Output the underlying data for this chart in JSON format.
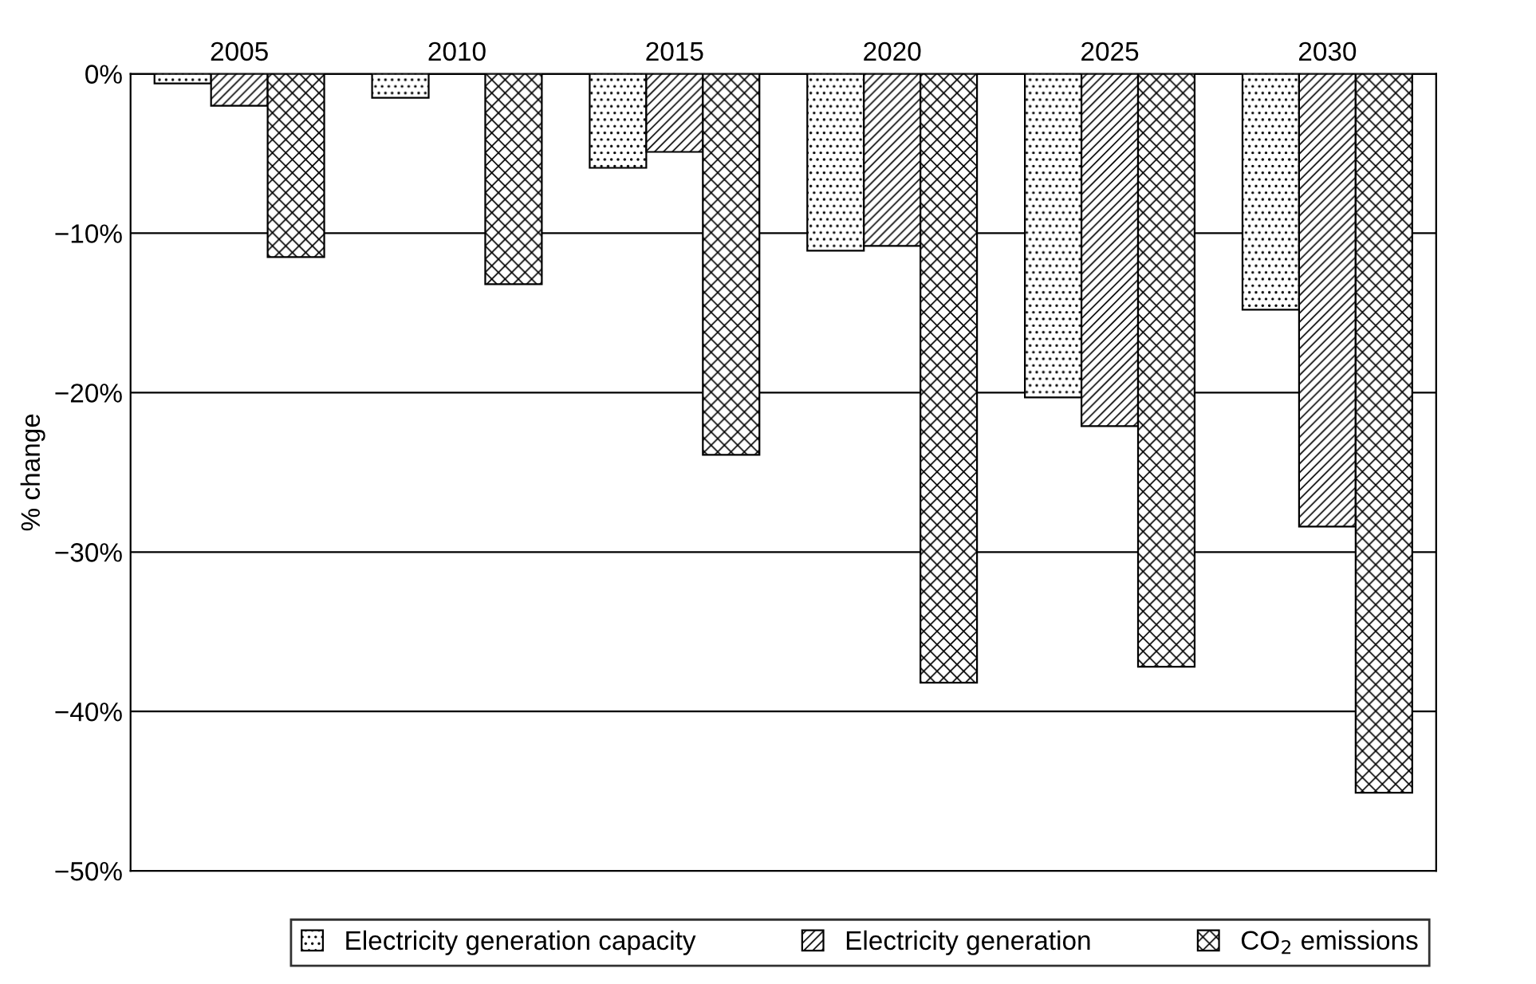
{
  "chart_data": {
    "type": "bar",
    "categories": [
      "2005",
      "2010",
      "2015",
      "2020",
      "2025",
      "2030"
    ],
    "ylabel": "% change",
    "ylim": [
      -50,
      0
    ],
    "yticks": [
      {
        "value": -50,
        "label": "−50%"
      },
      {
        "value": -40,
        "label": "−40%"
      },
      {
        "value": -30,
        "label": "−30%"
      },
      {
        "value": -20,
        "label": "−20%"
      },
      {
        "value": -10,
        "label": "−10%"
      },
      {
        "value": 0,
        "label": "0%"
      }
    ],
    "grid": "y",
    "legend": "bottom",
    "series": [
      {
        "name": "Electricity generation capacity",
        "color": "#000000",
        "values": [
          -0.6,
          -1.5,
          -5.9,
          -11.1,
          -20.3,
          -14.8
        ]
      },
      {
        "name": "Electricity generation",
        "color": "#000000",
        "values": [
          -2.0,
          0,
          -4.9,
          -10.8,
          -22.1,
          -28.4
        ]
      },
      {
        "name": "CO$_{2}$ emissions",
        "color": "#000000",
        "values": [
          -11.5,
          -13.2,
          -23.9,
          -38.2,
          -37.2,
          -45.1
        ]
      }
    ]
  }
}
